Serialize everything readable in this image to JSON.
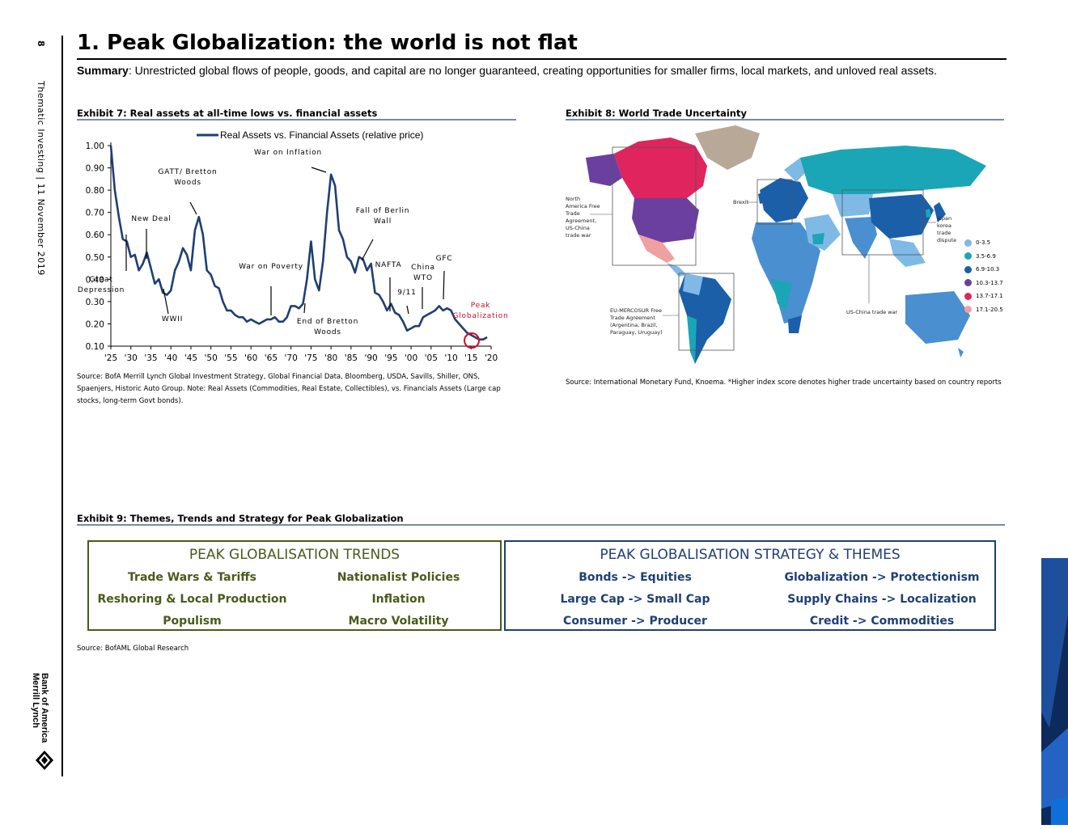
{
  "margin": {
    "page_number": "8",
    "running_head": "Thematic Investing | 11 November 2019",
    "logo_text": "Bank of America Merrill Lynch"
  },
  "header": {
    "title": "1. Peak Globalization: the world is not flat",
    "summary_label": "Summary",
    "summary_text": ": Unrestricted global flows of people, goods, and capital are no longer guaranteed, creating opportunities for smaller firms, local markets, and unloved real assets."
  },
  "exhibit7": {
    "title": "Exhibit 7: Real assets at all-time lows vs. financial assets",
    "source": "Source: BofA Merrill Lynch Global Investment Strategy, Global Financial Data, Bloomberg, USDA, Savills, Shiller, ONS, Spaenjers, Historic Auto Group. Note: Real Assets (Commodities, Real Estate, Collectibles), vs. Financials Assets (Large cap stocks, long-term Govt bonds)."
  },
  "chart_data": {
    "type": "line",
    "legend": "Real Assets vs. Financial Assets (relative price)",
    "legend_position": "top",
    "series": [
      {
        "name": "Real Assets vs. Financial Assets (relative price)",
        "color": "#1f3f73",
        "x": [
          1925,
          1926,
          1927,
          1928,
          1929,
          1930,
          1931,
          1932,
          1933,
          1934,
          1935,
          1936,
          1937,
          1938,
          1939,
          1940,
          1941,
          1942,
          1943,
          1944,
          1945,
          1946,
          1947,
          1948,
          1949,
          1950,
          1951,
          1952,
          1953,
          1954,
          1955,
          1956,
          1957,
          1958,
          1959,
          1960,
          1961,
          1962,
          1963,
          1964,
          1965,
          1966,
          1967,
          1968,
          1969,
          1970,
          1971,
          1972,
          1973,
          1974,
          1975,
          1976,
          1977,
          1978,
          1979,
          1980,
          1981,
          1982,
          1983,
          1984,
          1985,
          1986,
          1987,
          1988,
          1989,
          1990,
          1991,
          1992,
          1993,
          1994,
          1995,
          1996,
          1997,
          1998,
          1999,
          2000,
          2001,
          2002,
          2003,
          2004,
          2005,
          2006,
          2007,
          2008,
          2009,
          2010,
          2011,
          2012,
          2013,
          2014,
          2015,
          2016,
          2017,
          2018,
          2019
        ],
        "values": [
          1.0,
          0.8,
          0.68,
          0.58,
          0.57,
          0.5,
          0.51,
          0.44,
          0.47,
          0.52,
          0.45,
          0.38,
          0.4,
          0.34,
          0.33,
          0.35,
          0.44,
          0.48,
          0.54,
          0.51,
          0.44,
          0.62,
          0.68,
          0.6,
          0.44,
          0.42,
          0.37,
          0.36,
          0.3,
          0.26,
          0.26,
          0.24,
          0.23,
          0.23,
          0.21,
          0.22,
          0.21,
          0.2,
          0.21,
          0.22,
          0.22,
          0.23,
          0.21,
          0.21,
          0.23,
          0.28,
          0.28,
          0.27,
          0.29,
          0.4,
          0.57,
          0.4,
          0.35,
          0.48,
          0.7,
          0.87,
          0.82,
          0.62,
          0.58,
          0.5,
          0.48,
          0.43,
          0.5,
          0.49,
          0.44,
          0.47,
          0.34,
          0.33,
          0.3,
          0.26,
          0.29,
          0.25,
          0.24,
          0.21,
          0.17,
          0.18,
          0.19,
          0.19,
          0.23,
          0.24,
          0.25,
          0.26,
          0.28,
          0.26,
          0.27,
          0.26,
          0.22,
          0.2,
          0.18,
          0.16,
          0.15,
          0.14,
          0.13,
          0.13,
          0.14
        ]
      }
    ],
    "ylim": [
      0.1,
      1.0
    ],
    "yticks": [
      "0.10",
      "0.20",
      "0.30",
      "0.40",
      "0.50",
      "0.60",
      "0.70",
      "0.80",
      "0.90",
      "1.00"
    ],
    "xticks": [
      "'25",
      "'30",
      "'35",
      "'40",
      "'45",
      "'50",
      "'55",
      "'60",
      "'65",
      "'70",
      "'75",
      "'80",
      "'85",
      "'90",
      "'95",
      "'00",
      "'05",
      "'10",
      "'15",
      "'20"
    ],
    "grid": false,
    "annotations": [
      {
        "text": "Great Depression",
        "x": 1929
      },
      {
        "text": "New Deal",
        "x": 1934
      },
      {
        "text": "WWII",
        "x": 1939
      },
      {
        "text": "GATT/ Bretton Woods",
        "x": 1947
      },
      {
        "text": "War on Poverty",
        "x": 1965
      },
      {
        "text": "End of Bretton Woods",
        "x": 1971
      },
      {
        "text": "War on Inflation",
        "x": 1980
      },
      {
        "text": "Fall of Berlin Wall",
        "x": 1989
      },
      {
        "text": "NAFTA",
        "x": 1994
      },
      {
        "text": "9/11",
        "x": 2001
      },
      {
        "text": "China WTO",
        "x": 2001
      },
      {
        "text": "GFC",
        "x": 2008
      },
      {
        "text": "Peak Globalization",
        "x": 2018
      }
    ]
  },
  "exhibit8": {
    "title": "Exhibit 8: World Trade Uncertainty",
    "source": "Source: International Monetary Fund, Knoema. *Higher index score denotes higher trade uncertainty based on country reports",
    "labels": {
      "nafta": "North America Free Trade Agreement, US-China trade war",
      "brexit": "Brexit",
      "japan": "Japan korea trade dispute",
      "mercosur": "EU-MERCOSUR Free Trade Agreement (Argentina, Brazil, Paraguay, Uruguay)",
      "uschina": "US-China trade war"
    },
    "legend": [
      {
        "label": "0-3.5",
        "color": "#7fb9e6"
      },
      {
        "label": "3.5-6.9",
        "color": "#1aa6b7"
      },
      {
        "label": "6.9-10.3",
        "color": "#1a5fa8"
      },
      {
        "label": "10.3-13.7",
        "color": "#6b3fa0"
      },
      {
        "label": "13.7-17.1",
        "color": "#e0245e"
      },
      {
        "label": "17.1-20.5",
        "color": "#f0a0a0"
      }
    ]
  },
  "exhibit9": {
    "title": "Exhibit 9: Themes, Trends and Strategy for Peak Globalization",
    "source": "Source: BofAML Global Research",
    "trends": {
      "title": "PEAK GLOBALISATION TRENDS",
      "color": "#4a5a1a",
      "items": [
        "Trade Wars & Tariffs",
        "Nationalist Policies",
        "Reshoring & Local Production",
        "Inflation",
        "Populism",
        "Macro Volatility"
      ]
    },
    "strategy": {
      "title": "PEAK GLOBALISATION STRATEGY & THEMES",
      "color": "#1f3f73",
      "items": [
        "Bonds -> Equities",
        "Globalization -> Protectionism",
        "Large Cap -> Small Cap",
        "Supply Chains -> Localization",
        "Consumer -> Producer",
        "Credit -> Commodities"
      ]
    }
  }
}
